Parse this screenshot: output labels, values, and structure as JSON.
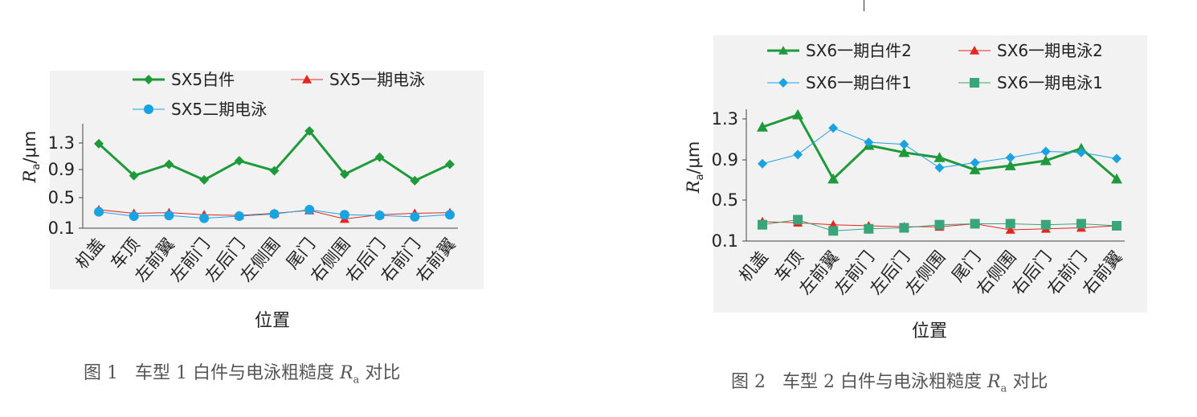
{
  "colors": {
    "green": "#1f9a3a",
    "red": "#e8241c",
    "blue": "#1aa3e0",
    "teal": "#3aa57a",
    "plot_bg": "#f2f2f2",
    "caption": "#555555"
  },
  "captions": {
    "fig1_num": "图 1",
    "fig1_text": "车型 1 白件与电泳粗糙度",
    "fig1_R": "R",
    "fig1_sub": "a",
    "fig1_tail": "对比",
    "fig2_num": "图 2",
    "fig2_text": "车型 2 白件与电泳粗糙度",
    "fig2_R": "R",
    "fig2_sub": "a",
    "fig2_tail": "对比"
  },
  "chart_data": [
    {
      "type": "line",
      "title": "",
      "xlabel": "位置",
      "ylabel": "Ra/μm",
      "ylabel_main": "R",
      "ylabel_sub": "a",
      "ylabel_unit": "/μm",
      "ylim": [
        0.1,
        1.6
      ],
      "yticks": [
        "0.1",
        "0.5",
        "0.9",
        "1.3"
      ],
      "grid": false,
      "legend": "top",
      "categories": [
        "机盖",
        "车顶",
        "左前翼",
        "左前门",
        "左后门",
        "左侧围",
        "尾门",
        "右侧围",
        "右后门",
        "右前门",
        "右前翼"
      ],
      "series": [
        {
          "name": "SX5白件",
          "color": "#1f9a3a",
          "marker": "diamond",
          "values": [
            1.29,
            0.84,
            1.0,
            0.78,
            1.05,
            0.91,
            1.47,
            0.86,
            1.1,
            0.77,
            1.0
          ]
        },
        {
          "name": "SX5一期电泳",
          "color": "#e8241c",
          "marker": "triangle",
          "values": [
            0.36,
            0.31,
            0.32,
            0.29,
            0.28,
            0.31,
            0.35,
            0.23,
            0.29,
            0.31,
            0.32
          ]
        },
        {
          "name": "SX5二期电泳",
          "color": "#1aa3e0",
          "marker": "circle",
          "values": [
            0.33,
            0.27,
            0.28,
            0.24,
            0.27,
            0.3,
            0.36,
            0.29,
            0.28,
            0.26,
            0.29
          ]
        }
      ]
    },
    {
      "type": "line",
      "title": "",
      "xlabel": "位置",
      "ylabel": "Ra/μm",
      "ylabel_main": "R",
      "ylabel_sub": "a",
      "ylabel_unit": "/μm",
      "ylim": [
        0.1,
        1.4
      ],
      "yticks": [
        "0.1",
        "0.5",
        "0.9",
        "1.3"
      ],
      "grid": false,
      "legend": "top",
      "categories": [
        "机盖",
        "车顶",
        "左前翼",
        "左前门",
        "左后门",
        "左侧围",
        "尾门",
        "右侧围",
        "右后门",
        "右前门",
        "右前翼"
      ],
      "series": [
        {
          "name": "SX6一期白件2",
          "color": "#1f9a3a",
          "marker": "triangle",
          "values": [
            1.22,
            1.34,
            0.71,
            1.04,
            0.97,
            0.92,
            0.8,
            0.84,
            0.89,
            1.01,
            0.71
          ]
        },
        {
          "name": "SX6一期电泳2",
          "color": "#e8241c",
          "marker": "triangle",
          "values": [
            0.29,
            0.28,
            0.26,
            0.25,
            0.24,
            0.24,
            0.27,
            0.21,
            0.22,
            0.23,
            0.25
          ]
        },
        {
          "name": "SX6一期白件1",
          "color": "#1aa3e0",
          "marker": "diamond",
          "values": [
            0.86,
            0.95,
            1.21,
            1.07,
            1.05,
            0.82,
            0.87,
            0.92,
            0.98,
            0.97,
            0.91
          ]
        },
        {
          "name": "SX6一期电泳1",
          "color": "#3aa57a",
          "marker": "square",
          "values": [
            0.26,
            0.31,
            0.2,
            0.22,
            0.23,
            0.26,
            0.27,
            0.27,
            0.26,
            0.27,
            0.25
          ]
        }
      ]
    }
  ]
}
